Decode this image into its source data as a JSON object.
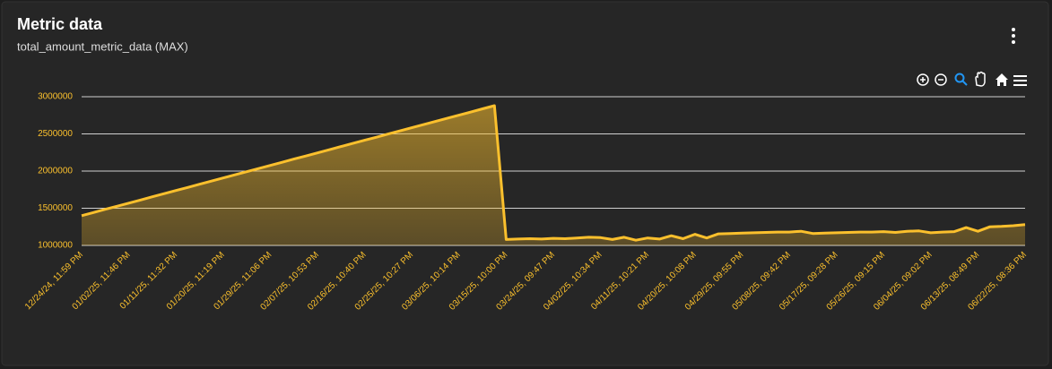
{
  "header": {
    "title": "Metric data",
    "subtitle": "total_amount_metric_data (MAX)"
  },
  "chart_data": {
    "type": "area",
    "categories": [
      "12/24/24, 11:59 PM",
      null,
      null,
      null,
      "01/02/25, 11:46 PM",
      null,
      null,
      null,
      "01/11/25, 11:32 PM",
      null,
      null,
      null,
      "01/20/25, 11:19 PM",
      null,
      null,
      null,
      "01/29/25, 11:06 PM",
      null,
      null,
      null,
      "02/07/25, 10:53 PM",
      null,
      null,
      null,
      "02/16/25, 10:40 PM",
      null,
      null,
      null,
      "02/25/25, 10:27 PM",
      null,
      null,
      null,
      "03/06/25, 10:14 PM",
      null,
      null,
      null,
      "03/15/25, 10:00 PM",
      null,
      null,
      null,
      "03/24/25, 09:47 PM",
      null,
      null,
      null,
      "04/02/25, 10:34 PM",
      null,
      null,
      null,
      "04/11/25, 10:21 PM",
      null,
      null,
      null,
      "04/20/25, 10:08 PM",
      null,
      null,
      null,
      "04/29/25, 09:55 PM",
      null,
      null,
      null,
      "05/08/25, 09:42 PM",
      null,
      null,
      null,
      "05/17/25, 09:28 PM",
      null,
      null,
      null,
      "05/26/25, 09:15 PM",
      null,
      null,
      null,
      "06/04/25, 09:02 PM",
      null,
      null,
      null,
      "06/13/25, 08:49 PM",
      null,
      null,
      null,
      "06/22/25, 08:36 PM"
    ],
    "series": [
      {
        "name": "total_amount_metric_data",
        "color": "#fbc02d",
        "values": [
          1400000,
          1442000,
          1485000,
          1527000,
          1569000,
          1611000,
          1654000,
          1696000,
          1738000,
          1780000,
          1823000,
          1865000,
          1907000,
          1949000,
          1992000,
          2034000,
          2076000,
          2118000,
          2161000,
          2203000,
          2245000,
          2287000,
          2330000,
          2372000,
          2414000,
          2456000,
          2499000,
          2541000,
          2583000,
          2625000,
          2668000,
          2710000,
          2752000,
          2794000,
          2837000,
          2880000,
          1080000,
          1085000,
          1090000,
          1085000,
          1095000,
          1090000,
          1100000,
          1110000,
          1105000,
          1080000,
          1110000,
          1070000,
          1100000,
          1085000,
          1130000,
          1090000,
          1150000,
          1100000,
          1155000,
          1160000,
          1165000,
          1170000,
          1175000,
          1180000,
          1180000,
          1190000,
          1160000,
          1165000,
          1170000,
          1175000,
          1180000,
          1180000,
          1185000,
          1175000,
          1190000,
          1195000,
          1170000,
          1180000,
          1185000,
          1240000,
          1190000,
          1250000,
          1255000,
          1265000,
          1280000
        ]
      }
    ],
    "ylim": [
      1000000,
      3000000
    ],
    "yticks": [
      1000000,
      1500000,
      2000000,
      2500000,
      3000000
    ],
    "grid": true
  }
}
